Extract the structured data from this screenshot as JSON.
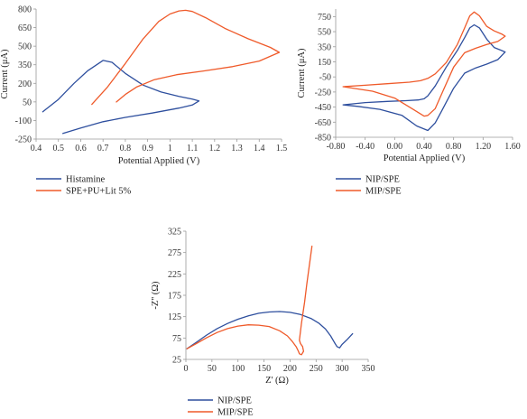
{
  "colors": {
    "blue": "#2e4f9e",
    "orange": "#ef5a2a"
  },
  "chart_data": [
    {
      "id": "cv1",
      "type": "line",
      "xlabel": "Potential Applied (V)",
      "ylabel": "Current (μA)",
      "xlim": [
        0.4,
        1.5
      ],
      "ylim": [
        -250,
        800
      ],
      "x_ticks": [
        "0.4",
        "0.5",
        "0.6",
        "0.7",
        "0.8",
        "0.9",
        "1",
        "1.1",
        "1.2",
        "1.3",
        "1.4",
        "1.5"
      ],
      "y_ticks": [
        "-250",
        "-100",
        "50",
        "200",
        "350",
        "500",
        "650",
        "800"
      ],
      "series": [
        {
          "name": "Histamine",
          "color": "#2e4f9e",
          "x": [
            0.43,
            0.5,
            0.57,
            0.63,
            0.68,
            0.7,
            0.74,
            0.8,
            0.88,
            0.96,
            1.04,
            1.1,
            1.13,
            1.1,
            1.04,
            0.92,
            0.8,
            0.7,
            0.6,
            0.52
          ],
          "y": [
            -30,
            70,
            200,
            300,
            360,
            385,
            370,
            280,
            185,
            130,
            95,
            72,
            58,
            25,
            0,
            -40,
            -75,
            -110,
            -160,
            -205
          ]
        },
        {
          "name": "SPE+PU+Lit 5%",
          "color": "#ef5a2a",
          "x": [
            0.65,
            0.72,
            0.8,
            0.88,
            0.95,
            1.0,
            1.04,
            1.07,
            1.1,
            1.16,
            1.25,
            1.35,
            1.45,
            1.49,
            1.4,
            1.28,
            1.15,
            1.03,
            0.93,
            0.85,
            0.8,
            0.76
          ],
          "y": [
            30,
            170,
            360,
            560,
            700,
            760,
            785,
            790,
            780,
            730,
            640,
            560,
            490,
            450,
            380,
            335,
            300,
            270,
            230,
            170,
            110,
            50
          ]
        }
      ]
    },
    {
      "id": "cv2",
      "type": "line",
      "xlabel": "Potential Applied (V)",
      "ylabel": "Current (μA)",
      "xlim": [
        -0.8,
        1.6
      ],
      "ylim": [
        -850,
        850
      ],
      "x_ticks": [
        "-0.80",
        "-0.40",
        "0.00",
        "0.40",
        "0.80",
        "1.20",
        "1.60"
      ],
      "y_ticks": [
        "-850",
        "-650",
        "-450",
        "-250",
        "-50",
        "150",
        "350",
        "550",
        "750"
      ],
      "series": [
        {
          "name": "NIP/SPE",
          "color": "#2e4f9e",
          "x": [
            -0.7,
            -0.4,
            -0.1,
            0.15,
            0.32,
            0.4,
            0.45,
            0.55,
            0.7,
            0.85,
            0.95,
            1.02,
            1.08,
            1.15,
            1.25,
            1.35,
            1.45,
            1.5,
            1.4,
            1.25,
            1.1,
            0.95,
            0.8,
            0.65,
            0.55,
            0.45,
            0.3,
            0.1,
            -0.2,
            -0.5,
            -0.7
          ],
          "y": [
            -420,
            -390,
            -375,
            -365,
            -355,
            -340,
            -300,
            -170,
            80,
            300,
            470,
            600,
            640,
            600,
            450,
            340,
            300,
            280,
            180,
            120,
            70,
            0,
            -200,
            -480,
            -660,
            -760,
            -700,
            -560,
            -480,
            -440,
            -420
          ]
        },
        {
          "name": "MIP/SPE",
          "color": "#ef5a2a",
          "x": [
            -0.7,
            -0.4,
            -0.1,
            0.2,
            0.35,
            0.45,
            0.55,
            0.7,
            0.85,
            0.95,
            1.02,
            1.08,
            1.15,
            1.25,
            1.35,
            1.45,
            1.5,
            1.4,
            1.25,
            1.1,
            0.95,
            0.8,
            0.65,
            0.55,
            0.45,
            0.4,
            0.25,
            0.0,
            -0.3,
            -0.7
          ],
          "y": [
            -180,
            -160,
            -140,
            -120,
            -100,
            -70,
            -10,
            140,
            380,
            600,
            760,
            810,
            760,
            620,
            560,
            520,
            490,
            420,
            380,
            330,
            270,
            80,
            -250,
            -470,
            -560,
            -570,
            -480,
            -330,
            -240,
            -180
          ]
        }
      ]
    },
    {
      "id": "eis",
      "type": "line",
      "xlabel": "Z' (Ω)",
      "ylabel": "-Z'' (Ω)",
      "xlim": [
        0,
        350
      ],
      "ylim": [
        25,
        325
      ],
      "x_ticks": [
        "0",
        "50",
        "100",
        "150",
        "200",
        "250",
        "300",
        "350"
      ],
      "y_ticks": [
        "25",
        "75",
        "125",
        "175",
        "225",
        "275",
        "325"
      ],
      "series": [
        {
          "name": "NIP/SPE",
          "color": "#2e4f9e",
          "x": [
            2,
            20,
            40,
            60,
            80,
            100,
            120,
            140,
            160,
            180,
            200,
            220,
            240,
            255,
            268,
            278,
            285,
            290,
            295,
            300,
            310,
            320
          ],
          "y": [
            50,
            65,
            82,
            97,
            109,
            119,
            127,
            133,
            136,
            137,
            135,
            130,
            121,
            110,
            96,
            80,
            65,
            55,
            52,
            60,
            72,
            85
          ]
        },
        {
          "name": "MIP/SPE",
          "color": "#ef5a2a",
          "x": [
            2,
            20,
            40,
            60,
            80,
            100,
            120,
            140,
            160,
            180,
            195,
            205,
            212,
            216,
            218,
            222,
            226,
            224,
            220,
            218,
            222,
            228,
            232,
            237,
            242
          ],
          "y": [
            50,
            62,
            76,
            88,
            97,
            103,
            106,
            105,
            102,
            92,
            80,
            66,
            54,
            44,
            38,
            36,
            44,
            55,
            62,
            70,
            110,
            160,
            200,
            245,
            290
          ]
        }
      ]
    }
  ]
}
